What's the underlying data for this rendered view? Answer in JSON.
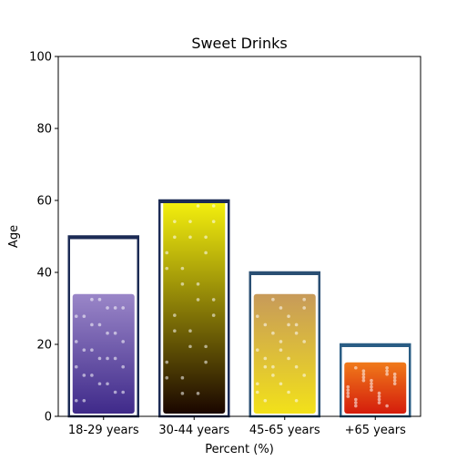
{
  "chart_data": {
    "type": "bar",
    "title": "Sweet Drinks",
    "xlabel": "Percent (%)",
    "ylabel": "Age",
    "ylim": [
      0,
      100
    ],
    "yticks": [
      0,
      20,
      40,
      60,
      80,
      100
    ],
    "grid": false,
    "categories": [
      "18-29 years",
      "30-44 years",
      "45-65 years",
      "+65 years"
    ],
    "values": [
      50,
      60,
      40,
      20
    ],
    "bar_styles": [
      {
        "liquid_level": 34,
        "liquid_top": "#9a86c8",
        "liquid_bottom": "#3f2a8a",
        "frame": "#1c2b55"
      },
      {
        "liquid_level": 60,
        "liquid_top": "#f6f20e",
        "liquid_bottom": "#1a0600",
        "frame": "#1c2b55"
      },
      {
        "liquid_level": 34,
        "liquid_top": "#c79a5a",
        "liquid_bottom": "#f2e11a",
        "frame": "#2a4f73"
      },
      {
        "liquid_level": 15,
        "liquid_top": "#f07a1a",
        "liquid_bottom": "#d41c0c",
        "frame": "#2a5d84"
      }
    ]
  }
}
